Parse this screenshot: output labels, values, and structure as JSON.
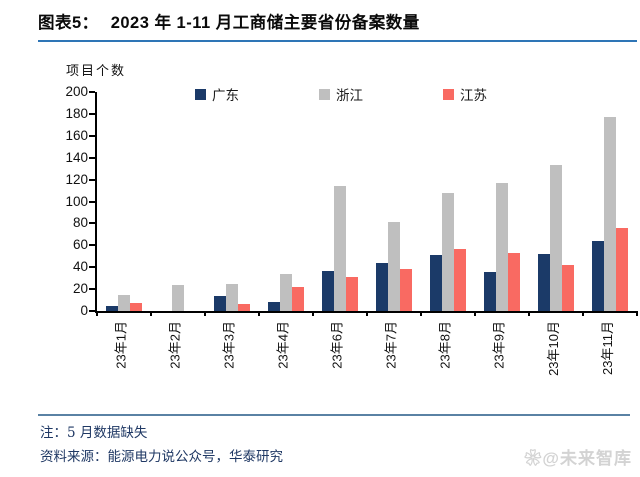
{
  "title": {
    "label": "图表5：",
    "text": "2023 年 1-11 月工商储主要省份备案数量"
  },
  "chart_data": {
    "type": "bar",
    "title": "2023 年 1-11 月工商储主要省份备案数量",
    "ylabel": "项目个数",
    "xlabel": "",
    "ylim": [
      0,
      200
    ],
    "ytick_step": 20,
    "grid": false,
    "legend_position": "top",
    "categories": [
      "23年1月",
      "23年2月",
      "23年3月",
      "23年4月",
      "23年6月",
      "23年7月",
      "23年8月",
      "23年9月",
      "23年10月",
      "23年11月"
    ],
    "series": [
      {
        "name": "广东",
        "color": "#1B3A68",
        "values": [
          5,
          0,
          14,
          8,
          37,
          44,
          51,
          36,
          52,
          64
        ]
      },
      {
        "name": "浙江",
        "color": "#BFBFBF",
        "values": [
          15,
          24,
          25,
          34,
          114,
          81,
          108,
          117,
          133,
          177
        ]
      },
      {
        "name": "江苏",
        "color": "#F96A62",
        "values": [
          7,
          0,
          6,
          22,
          31,
          38,
          57,
          53,
          42,
          76
        ]
      }
    ]
  },
  "footer": {
    "note": "注：5 月数据缺失",
    "source": "资料来源：能源电力说公众号，华泰研究",
    "watermark_icon": "❀",
    "watermark": "@未来智库"
  },
  "colors": {
    "title_underline": "#2E75B6",
    "footer_line": "#5A82A4",
    "axis": "#000000"
  }
}
